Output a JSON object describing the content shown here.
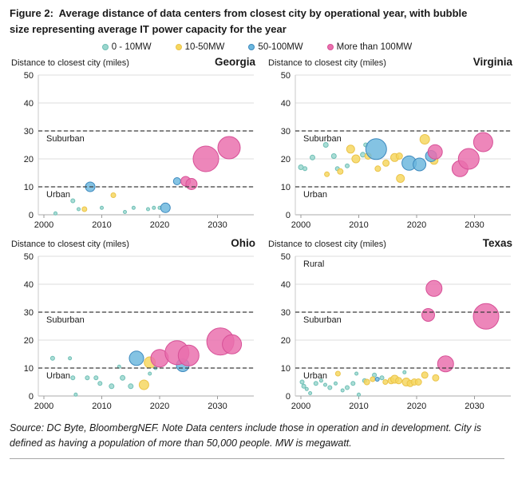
{
  "title": "Figure 2:  Average distance of data centers from closest city by operational year, with bubble size representing average IT power capacity for the year",
  "legend": {
    "items": [
      {
        "label": "0 - 10MW",
        "fill": "#9AD6CE",
        "stroke": "#6FBFB5"
      },
      {
        "label": "10-50MW",
        "fill": "#F6D75F",
        "stroke": "#EBC44A"
      },
      {
        "label": "50-100MW",
        "fill": "#6CB8DE",
        "stroke": "#3D89BE"
      },
      {
        "label": "More than 100MW",
        "fill": "#EA6FAD",
        "stroke": "#D75097"
      }
    ]
  },
  "axes": {
    "y_label": "Distance to closest city (miles)",
    "y_ticks": [
      0,
      10,
      20,
      30,
      40,
      50
    ],
    "x_ticks": [
      2000,
      2010,
      2020,
      2030
    ],
    "y_min": 0,
    "y_max": 50,
    "x_min": 2000,
    "x_max": 2035,
    "dashed_threshold_lines": [
      30,
      10
    ],
    "grid": "horizontal-light"
  },
  "point_format": "[operational_year, distance_miles, bubble_radius_px]",
  "chart_data": [
    {
      "type": "scatter",
      "state": "Georgia",
      "region_labels": [
        {
          "label": "Suburban",
          "y": 30
        },
        {
          "label": "Urban",
          "y": 10
        }
      ],
      "series": [
        {
          "name": "0 - 10MW",
          "points": [
            [
              2002,
              0.5,
              2
            ],
            [
              2005,
              5,
              2.5
            ],
            [
              2006,
              2,
              2
            ],
            [
              2010,
              2.5,
              2
            ],
            [
              2014,
              1,
              2
            ],
            [
              2015.5,
              2.5,
              2
            ],
            [
              2018,
              2,
              2
            ],
            [
              2019,
              2.5,
              2
            ],
            [
              2020,
              2.5,
              2
            ]
          ]
        },
        {
          "name": "10-50MW",
          "points": [
            [
              2007,
              2,
              3
            ],
            [
              2012,
              7,
              3
            ]
          ]
        },
        {
          "name": "50-100MW",
          "points": [
            [
              2008,
              10,
              6
            ],
            [
              2021,
              2.5,
              6
            ],
            [
              2023,
              12,
              4.5
            ]
          ]
        },
        {
          "name": "More than 100MW",
          "points": [
            [
              2024.5,
              12,
              6
            ],
            [
              2025.5,
              11,
              7
            ],
            [
              2028,
              20,
              16
            ],
            [
              2032,
              24,
              14
            ]
          ]
        }
      ]
    },
    {
      "type": "scatter",
      "state": "Virginia",
      "region_labels": [
        {
          "label": "Suburban",
          "y": 30
        },
        {
          "label": "Urban",
          "y": 10
        }
      ],
      "series": [
        {
          "name": "0 - 10MW",
          "points": [
            [
              2000,
              17,
              3
            ],
            [
              2000.7,
              16.5,
              2.5
            ],
            [
              2002,
              20.5,
              3
            ],
            [
              2004.3,
              25,
              3
            ],
            [
              2005.7,
              21,
              3
            ],
            [
              2006.3,
              16.5,
              2.5
            ],
            [
              2008,
              17.5,
              2.5
            ],
            [
              2010.7,
              21.5,
              3
            ],
            [
              2011.2,
              25,
              2.5
            ]
          ]
        },
        {
          "name": "10-50MW",
          "points": [
            [
              2004.5,
              14.5,
              3
            ],
            [
              2006.8,
              15.5,
              3.5
            ],
            [
              2008.6,
              23.5,
              5
            ],
            [
              2009.5,
              20,
              5
            ],
            [
              2011.6,
              21,
              4
            ],
            [
              2013.3,
              16.5,
              3.5
            ],
            [
              2014.7,
              18.5,
              4
            ],
            [
              2016.2,
              20.5,
              5
            ],
            [
              2017,
              21,
              4
            ],
            [
              2017.2,
              13,
              5
            ],
            [
              2021.4,
              27,
              6
            ],
            [
              2023,
              19.5,
              5
            ]
          ]
        },
        {
          "name": "50-100MW",
          "points": [
            [
              2013,
              23.5,
              13
            ],
            [
              2018.7,
              18.5,
              9
            ],
            [
              2020.5,
              18,
              8
            ],
            [
              2022.5,
              21,
              7
            ]
          ]
        },
        {
          "name": "More than 100MW",
          "points": [
            [
              2023.2,
              22.5,
              9
            ],
            [
              2027.5,
              16.5,
              10
            ],
            [
              2029,
              20,
              13
            ],
            [
              2031.5,
              26,
              12
            ]
          ]
        }
      ]
    },
    {
      "type": "scatter",
      "state": "Ohio",
      "region_labels": [
        {
          "label": "Suburban",
          "y": 30
        },
        {
          "label": "Urban",
          "y": 10
        }
      ],
      "series": [
        {
          "name": "0 - 10MW",
          "points": [
            [
              2001.5,
              13.5,
              2.5
            ],
            [
              2004.5,
              13.5,
              2
            ],
            [
              2005,
              6.5,
              2.5
            ],
            [
              2005.5,
              0.5,
              2
            ],
            [
              2007.5,
              6.5,
              2.5
            ],
            [
              2009,
              6.5,
              2.5
            ],
            [
              2009.7,
              4.5,
              2.5
            ],
            [
              2011.7,
              3.5,
              3
            ],
            [
              2013,
              10.5,
              2
            ],
            [
              2013.6,
              6.5,
              3
            ],
            [
              2015,
              3.5,
              3
            ],
            [
              2018.3,
              8,
              2
            ],
            [
              2019.3,
              10,
              2
            ]
          ]
        },
        {
          "name": "10-50MW",
          "points": [
            [
              2017.3,
              4,
              6
            ],
            [
              2018.3,
              12,
              7
            ]
          ]
        },
        {
          "name": "50-100MW",
          "points": [
            [
              2016,
              13.5,
              9
            ],
            [
              2024,
              11,
              8
            ]
          ]
        },
        {
          "name": "More than 100MW",
          "points": [
            [
              2020,
              13.5,
              11
            ],
            [
              2023,
              15.5,
              15
            ],
            [
              2025,
              14.5,
              13
            ],
            [
              2030.5,
              19.5,
              17
            ],
            [
              2032.5,
              18.5,
              12
            ]
          ]
        }
      ]
    },
    {
      "type": "scatter",
      "state": "Texas",
      "region_labels": [
        {
          "label": "Rural",
          "y": 50
        },
        {
          "label": "Suburban",
          "y": 30
        },
        {
          "label": "Urban",
          "y": 10
        }
      ],
      "series": [
        {
          "name": "0 - 10MW",
          "points": [
            [
              2000.2,
              5,
              2.5
            ],
            [
              2000.5,
              3.5,
              2.5
            ],
            [
              2001,
              2.5,
              2
            ],
            [
              2001.6,
              1,
              2
            ],
            [
              2002.6,
              4.5,
              2.5
            ],
            [
              2003.5,
              5.5,
              2
            ],
            [
              2004.2,
              4,
              2
            ],
            [
              2005,
              3,
              2.5
            ],
            [
              2006,
              4.5,
              2
            ],
            [
              2007.2,
              2,
              2
            ],
            [
              2008,
              3,
              2.5
            ],
            [
              2009,
              4.5,
              2.5
            ],
            [
              2009.6,
              8,
              2
            ],
            [
              2010,
              0.5,
              2
            ],
            [
              2011,
              5.5,
              2.5
            ],
            [
              2012.7,
              7.5,
              2.5
            ],
            [
              2014,
              6.5,
              2.5
            ],
            [
              2017.9,
              8.5,
              2
            ]
          ]
        },
        {
          "name": "10-50MW",
          "points": [
            [
              2006.4,
              8,
              3
            ],
            [
              2011.4,
              5,
              3.5
            ],
            [
              2012.4,
              6,
              3
            ],
            [
              2014.6,
              5,
              3
            ],
            [
              2015.6,
              5.5,
              4
            ],
            [
              2016.2,
              6,
              5
            ],
            [
              2016.9,
              5.5,
              4
            ],
            [
              2018.2,
              5,
              5
            ],
            [
              2018.9,
              4.5,
              4
            ],
            [
              2019.6,
              5,
              4
            ],
            [
              2020.3,
              5,
              4
            ],
            [
              2021.4,
              7.5,
              4
            ],
            [
              2023.3,
              6.5,
              4
            ]
          ]
        },
        {
          "name": "50-100MW",
          "points": [
            [
              2013.2,
              6,
              2.5
            ]
          ]
        },
        {
          "name": "More than 100MW",
          "points": [
            [
              2022,
              29,
              8
            ],
            [
              2023,
              38.5,
              10
            ],
            [
              2025,
              11.5,
              10
            ],
            [
              2032,
              28.5,
              16
            ]
          ]
        }
      ]
    }
  ],
  "footer": "Source: DC Byte, BloombergNEF. Note Data centers include those in operation and in development. City is defined as having a population of more than 50,000 people. MW is megawatt."
}
